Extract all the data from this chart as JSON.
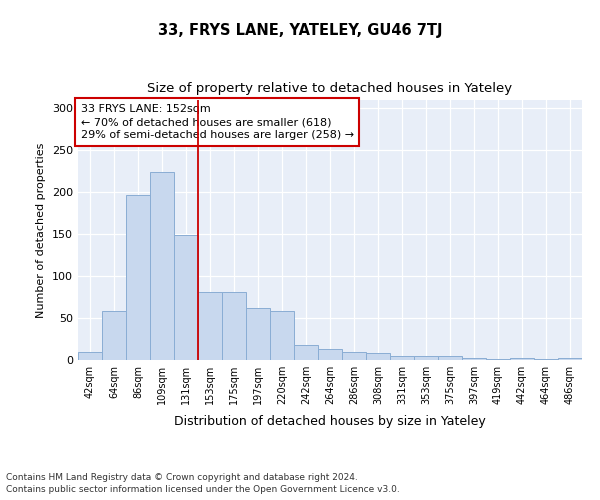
{
  "title1": "33, FRYS LANE, YATELEY, GU46 7TJ",
  "title2": "Size of property relative to detached houses in Yateley",
  "xlabel": "Distribution of detached houses by size in Yateley",
  "ylabel": "Number of detached properties",
  "categories": [
    "42sqm",
    "64sqm",
    "86sqm",
    "109sqm",
    "131sqm",
    "153sqm",
    "175sqm",
    "197sqm",
    "220sqm",
    "242sqm",
    "264sqm",
    "286sqm",
    "308sqm",
    "331sqm",
    "353sqm",
    "375sqm",
    "397sqm",
    "419sqm",
    "442sqm",
    "464sqm",
    "486sqm"
  ],
  "values": [
    9,
    59,
    197,
    224,
    149,
    81,
    81,
    62,
    58,
    18,
    13,
    9,
    8,
    5,
    5,
    5,
    2,
    1,
    2,
    1,
    2
  ],
  "bar_color": "#c8d8ee",
  "bar_edge_color": "#8aadd4",
  "vline_color": "#cc0000",
  "annotation_text": "33 FRYS LANE: 152sqm\n← 70% of detached houses are smaller (618)\n29% of semi-detached houses are larger (258) →",
  "annotation_box_color": "#ffffff",
  "annotation_box_edge": "#cc0000",
  "ylim": [
    0,
    310
  ],
  "yticks": [
    0,
    50,
    100,
    150,
    200,
    250,
    300
  ],
  "footer1": "Contains HM Land Registry data © Crown copyright and database right 2024.",
  "footer2": "Contains public sector information licensed under the Open Government Licence v3.0.",
  "fig_bg_color": "#ffffff",
  "plot_bg_color": "#e8eef8"
}
